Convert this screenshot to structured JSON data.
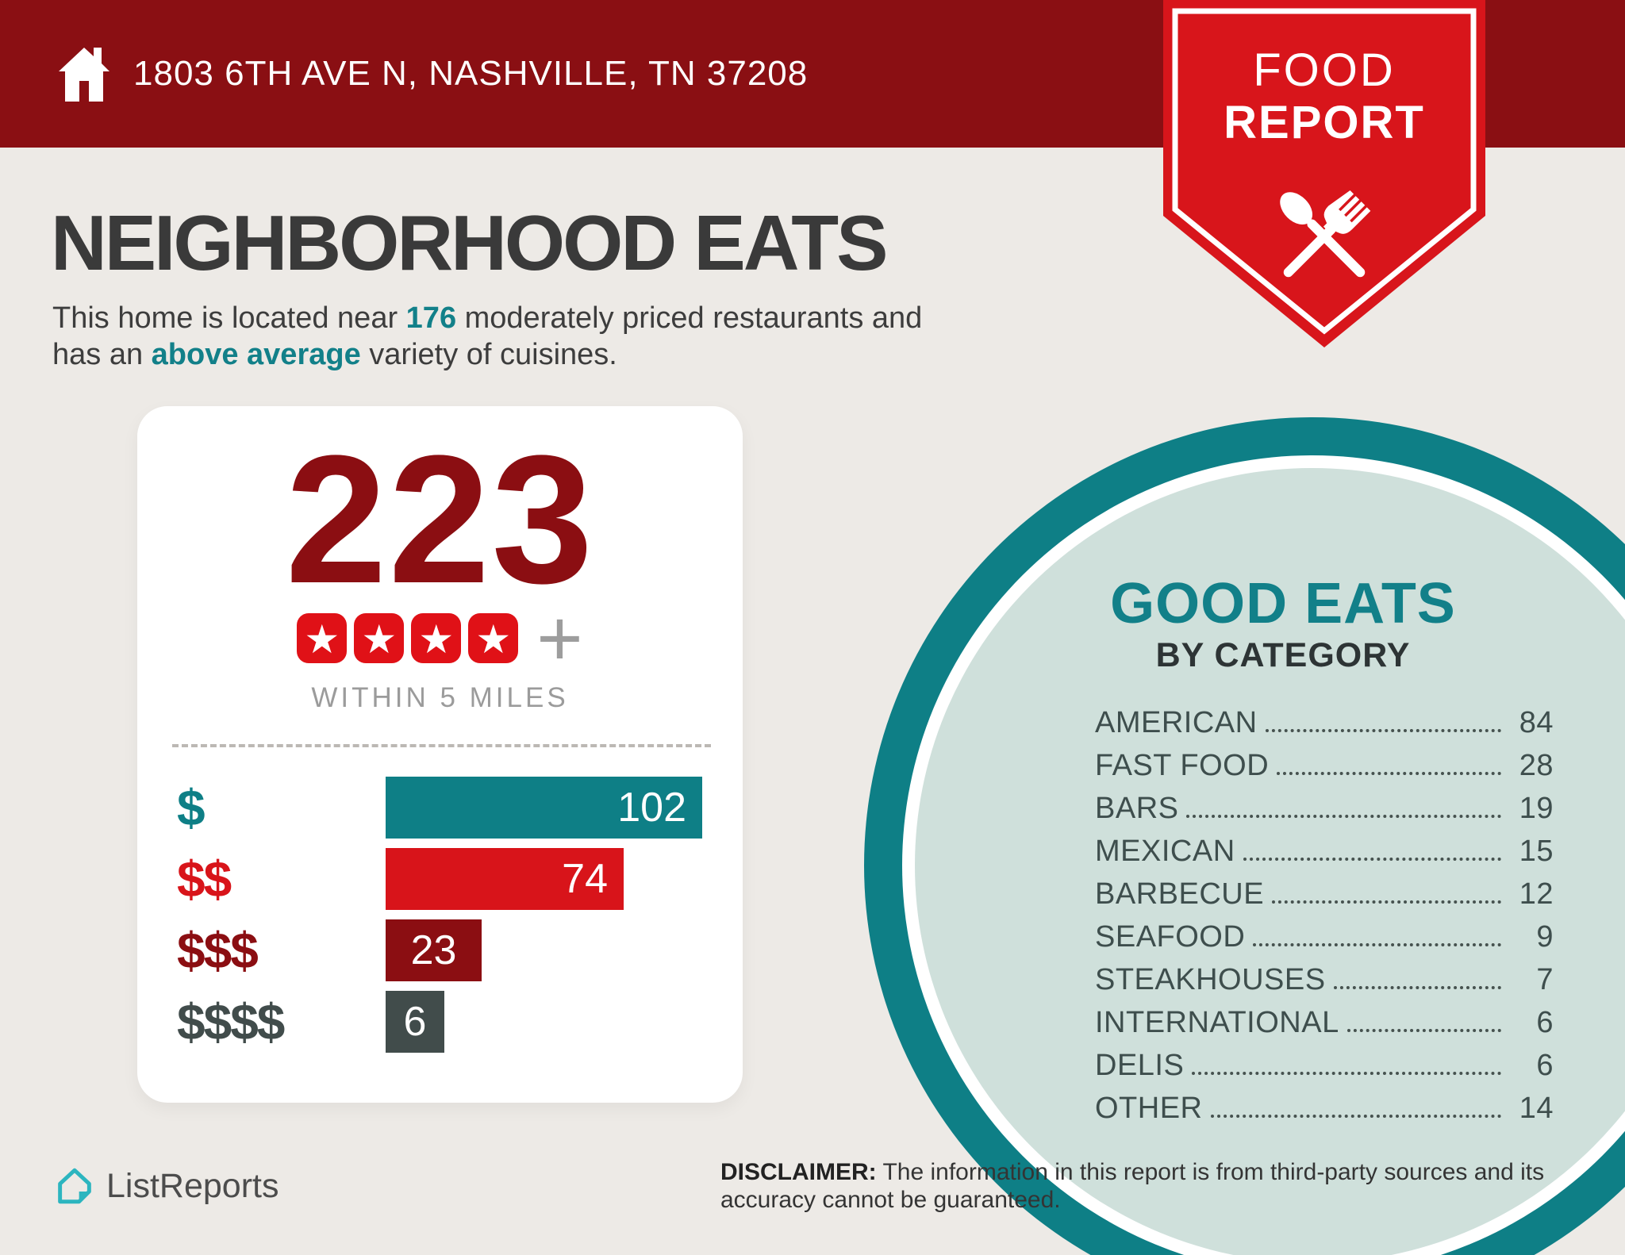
{
  "colors": {
    "header_bg": "#8a0f13",
    "badge_red": "#d8151b",
    "teal": "#0e7f86",
    "teal_text": "#128089",
    "pale_teal": "#cfe0db",
    "maroon": "#8b0e12",
    "slate": "#414c4b",
    "star_red": "#e01117",
    "background": "#edeae6"
  },
  "header": {
    "address": "1803 6TH AVE N, NASHVILLE, TN 37208"
  },
  "badge": {
    "line1": "FOOD",
    "line2": "REPORT"
  },
  "intro": {
    "title": "NEIGHBORHOOD EATS",
    "s1": "This home is located near ",
    "s2": "176",
    "s3": " moderately priced restaurants and",
    "s4": "has an ",
    "s5": "above average",
    "s6": " variety of cuisines."
  },
  "summary": {
    "count": "223",
    "star_count": 4,
    "star_glyph": "★",
    "plus": "+",
    "within": "WITHIN 5 MILES"
  },
  "good_eats": {
    "title": "GOOD EATS",
    "subtitle": "BY CATEGORY"
  },
  "footer": {
    "brand": "ListReports",
    "disclaimer_label": "DISCLAIMER:",
    "disclaimer_text": " The information in this report is from third-party sources and its accuracy cannot be guaranteed."
  },
  "chart_data": [
    {
      "type": "bar",
      "title": "Restaurants by price tier within 5 miles",
      "orientation": "horizontal",
      "categories": [
        "$",
        "$$",
        "$$$",
        "$$$$"
      ],
      "values": [
        102,
        74,
        23,
        6
      ],
      "bar_colors": [
        "#0e7f86",
        "#d8141a",
        "#8b0e12",
        "#414c4b"
      ],
      "value_labels": "inside-end",
      "total": 223,
      "rating_stars": 4
    },
    {
      "type": "table",
      "title": "GOOD EATS BY CATEGORY",
      "rows": [
        {
          "label": "AMERICAN",
          "value": 84
        },
        {
          "label": "FAST FOOD",
          "value": 28
        },
        {
          "label": "BARS",
          "value": 19
        },
        {
          "label": "MEXICAN",
          "value": 15
        },
        {
          "label": "BARBECUE",
          "value": 12
        },
        {
          "label": "SEAFOOD",
          "value": 9
        },
        {
          "label": "STEAKHOUSES",
          "value": 7
        },
        {
          "label": "INTERNATIONAL",
          "value": 6
        },
        {
          "label": "DELIS",
          "value": 6
        },
        {
          "label": "OTHER",
          "value": 14
        }
      ]
    }
  ]
}
